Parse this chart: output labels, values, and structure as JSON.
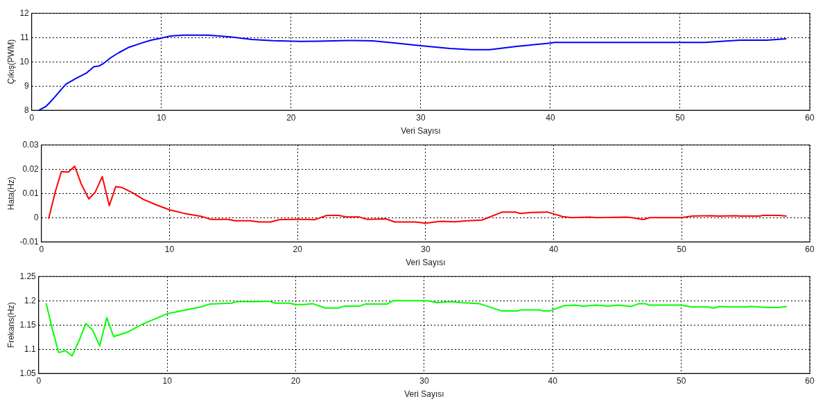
{
  "chart_data": [
    {
      "type": "line",
      "xlabel": "Veri Sayısı",
      "ylabel": "Çıkış(PWM)",
      "xlim": [
        0,
        60
      ],
      "xticks": [
        0,
        10,
        20,
        30,
        40,
        50,
        60
      ],
      "ylim": [
        8,
        12
      ],
      "yticks": [
        8,
        9,
        10,
        11,
        12
      ],
      "grid": true,
      "color": "#0000ff",
      "x": [
        0.56,
        1.08,
        1.4,
        1.8,
        2.23,
        2.65,
        3.4,
        4.2,
        4.8,
        5.2,
        5.56,
        6.1,
        6.7,
        7.5,
        8.4,
        9.2,
        10,
        10.7,
        11.7,
        13.6,
        15.3,
        17,
        18.6,
        20.7,
        22.1,
        24.4,
        26.3,
        28.1,
        30,
        32.25,
        33.9,
        35.3,
        37.5,
        40,
        40.3,
        51.9,
        54.6,
        56.7,
        58.2
      ],
      "values": [
        8.0,
        8.15,
        8.32,
        8.56,
        8.83,
        9.08,
        9.31,
        9.53,
        9.8,
        9.83,
        9.94,
        10.17,
        10.37,
        10.6,
        10.76,
        10.89,
        10.98,
        11.06,
        11.1,
        11.1,
        11.03,
        10.92,
        10.87,
        10.84,
        10.85,
        10.88,
        10.86,
        10.77,
        10.66,
        10.55,
        10.5,
        10.5,
        10.64,
        10.77,
        10.8,
        10.8,
        10.89,
        10.89,
        10.95
      ]
    },
    {
      "type": "line",
      "xlabel": "Veri Sayısı",
      "ylabel": "Hata(Hz)",
      "xlim": [
        0,
        60
      ],
      "xticks": [
        0,
        10,
        20,
        30,
        40,
        50,
        60
      ],
      "ylim": [
        -0.01,
        0.03
      ],
      "yticks": [
        -0.01,
        0,
        0.01,
        0.02,
        0.03
      ],
      "grid": true,
      "color": "#ff0000",
      "x": [
        0.56,
        1.1,
        1.56,
        2.1,
        2.6,
        3.1,
        3.7,
        4.2,
        4.75,
        5.3,
        5.8,
        6.3,
        7.1,
        7.96,
        9.0,
        10.0,
        11.1,
        12.5,
        13.2,
        14.6,
        15.1,
        16.3,
        17.0,
        17.9,
        18.6,
        19.8,
        20.7,
        21.3,
        22.3,
        23.2,
        23.8,
        24.8,
        25.4,
        26.9,
        27.6,
        29.2,
        30,
        31.2,
        32.25,
        33.3,
        34.4,
        36.0,
        37,
        37.4,
        38.2,
        39.5,
        40.7,
        41.4,
        42.8,
        43.4,
        45.7,
        46.1,
        47,
        47.5,
        50,
        50.8,
        52.3,
        52.9,
        54.2,
        54.6,
        56.1,
        56.3,
        57.6,
        58.2
      ],
      "values": [
        -0.0005,
        0.011,
        0.019,
        0.0188,
        0.0212,
        0.014,
        0.0077,
        0.0105,
        0.0169,
        0.0049,
        0.0128,
        0.0124,
        0.0103,
        0.0075,
        0.0052,
        0.0032,
        0.0018,
        0.0005,
        -0.0007,
        -0.0007,
        -0.0013,
        -0.0013,
        -0.0018,
        -0.0018,
        -0.0008,
        -0.0007,
        -0.0007,
        -0.0009,
        0.0009,
        0.0009,
        0.0003,
        0.0003,
        -0.0007,
        -0.0005,
        -0.0018,
        -0.0018,
        -0.0023,
        -0.0015,
        -0.0017,
        -0.0013,
        -0.001,
        0.0023,
        0.0023,
        0.0017,
        0.0021,
        0.0023,
        0.0004,
        0,
        0.0002,
        0,
        0.0002,
        0,
        -0.0008,
        0,
        0,
        0.0006,
        0.0008,
        0.0006,
        0.0008,
        0.0006,
        0.0006,
        0.0009,
        0.0009,
        0.0006
      ]
    },
    {
      "type": "line",
      "xlabel": "Veri Sayısı",
      "ylabel": "Frekans(Hz)",
      "xlim": [
        0,
        60
      ],
      "xticks": [
        0,
        10,
        20,
        30,
        40,
        50,
        60
      ],
      "ylim": [
        1.05,
        1.25
      ],
      "yticks": [
        1.05,
        1.1,
        1.15,
        1.2,
        1.25
      ],
      "grid": true,
      "color": "#00ff00",
      "x": [
        0.58,
        1.08,
        1.56,
        2.08,
        2.6,
        3.17,
        3.67,
        4.2,
        4.75,
        5.3,
        5.83,
        6.9,
        8.1,
        9.0,
        10,
        11.25,
        12.6,
        13.3,
        15,
        15.4,
        16.9,
        17.9,
        18.4,
        19.5,
        20,
        20.6,
        21.3,
        22.3,
        23.3,
        23.8,
        25,
        25.4,
        27.1,
        27.6,
        30.3,
        31,
        32,
        32.9,
        34.3,
        36,
        37.3,
        37.5,
        39,
        39.2,
        39.8,
        40.9,
        41.7,
        42.4,
        43.4,
        44.3,
        45.1,
        46.1,
        46.7,
        47.2,
        47.5,
        50,
        50.8,
        52.1,
        52.5,
        53,
        53.6,
        55.1,
        55.3,
        56.8,
        57.6,
        58.2
      ],
      "values": [
        1.195,
        1.14,
        1.093,
        1.097,
        1.086,
        1.119,
        1.153,
        1.139,
        1.107,
        1.165,
        1.126,
        1.135,
        1.152,
        1.162,
        1.173,
        1.18,
        1.187,
        1.193,
        1.195,
        1.198,
        1.198,
        1.199,
        1.195,
        1.195,
        1.192,
        1.192,
        1.194,
        1.185,
        1.185,
        1.189,
        1.189,
        1.193,
        1.193,
        1.2,
        1.2,
        1.196,
        1.198,
        1.196,
        1.194,
        1.179,
        1.179,
        1.181,
        1.181,
        1.179,
        1.179,
        1.19,
        1.191,
        1.189,
        1.191,
        1.189,
        1.191,
        1.188,
        1.194,
        1.194,
        1.191,
        1.191,
        1.187,
        1.187,
        1.185,
        1.188,
        1.187,
        1.187,
        1.188,
        1.186,
        1.186,
        1.188
      ]
    }
  ]
}
